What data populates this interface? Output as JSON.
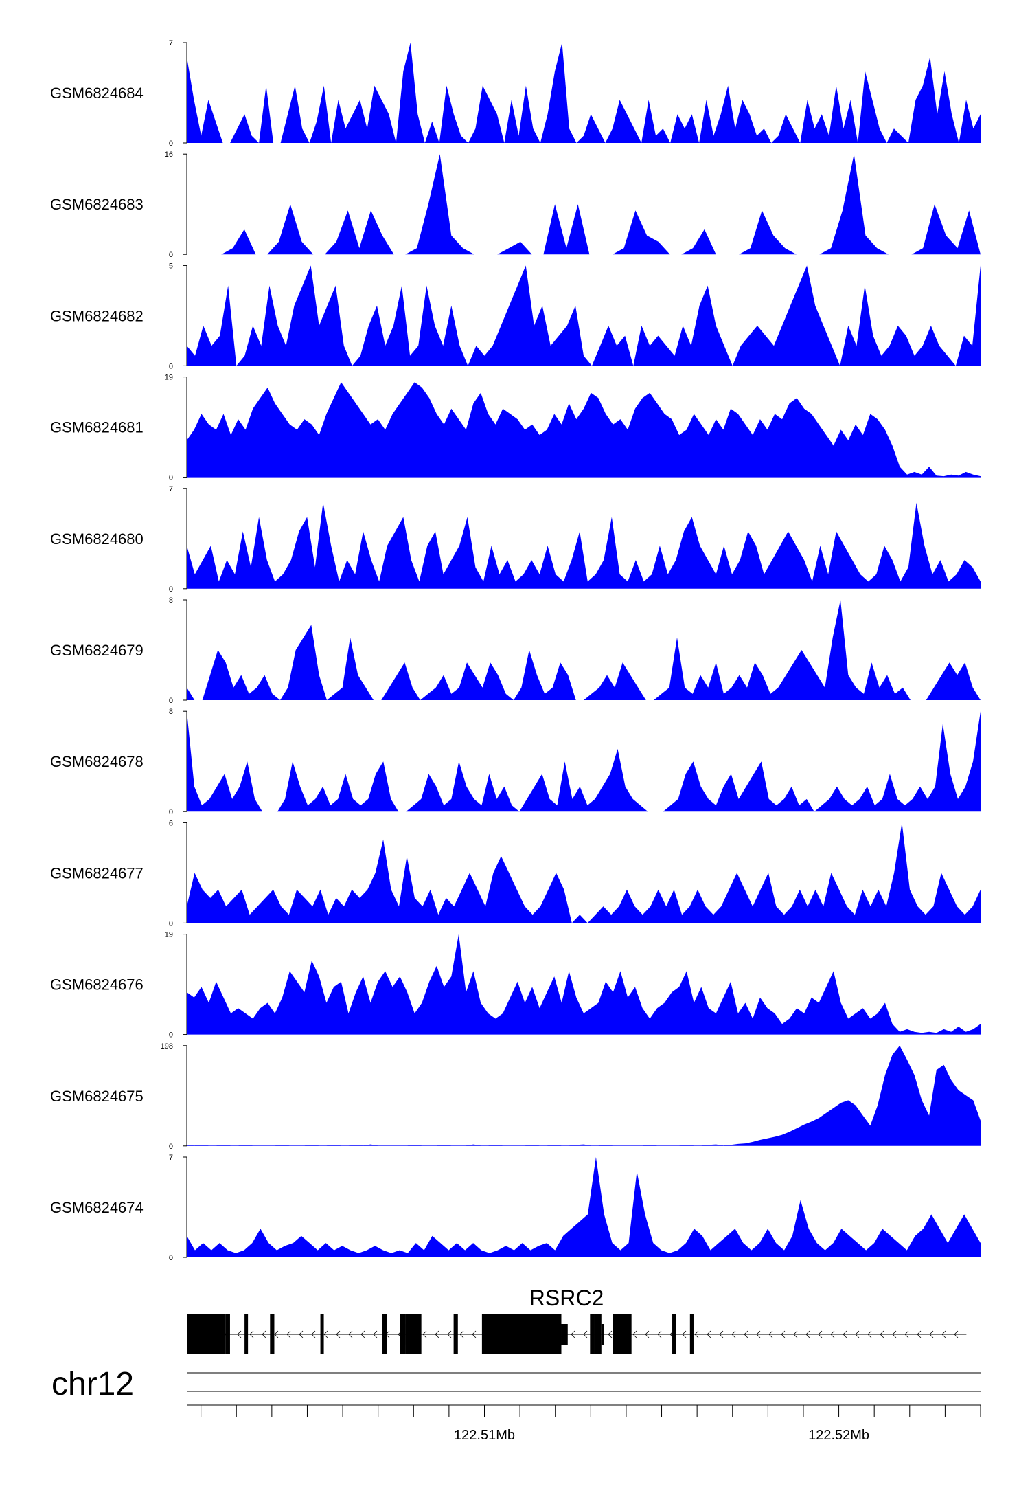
{
  "figure": {
    "chrom_label": "chr12",
    "gene_label": "RSRC2"
  },
  "colors": {
    "track_fill": "#0000ff",
    "gene": "#000000",
    "axis": "#000000"
  },
  "chart_data": {
    "type": "area",
    "genomic_range": [
      122.5016,
      122.524
    ],
    "x_unit": "Mb",
    "x_tick_labels": [
      {
        "value": 122.51,
        "label": "122.51Mb"
      },
      {
        "value": 122.52,
        "label": "122.52Mb"
      }
    ],
    "tracks": [
      {
        "name": "GSM6824684",
        "ymax": 7,
        "ymin": 0,
        "ylabel_max": "7",
        "ylabel_min": "0",
        "values": [
          6,
          3,
          0.5,
          3,
          1.5,
          0,
          0,
          1,
          2,
          0.5,
          0,
          4,
          0,
          0,
          2,
          4,
          1,
          0,
          1.5,
          4,
          0,
          3,
          1,
          2,
          3,
          1,
          4,
          3,
          2,
          0,
          5,
          7,
          2,
          0,
          1.5,
          0,
          4,
          2,
          0.5,
          0,
          1,
          4,
          3,
          2,
          0,
          3,
          0.5,
          4,
          1,
          0,
          2,
          5,
          7,
          1,
          0,
          0.5,
          2,
          1,
          0,
          1,
          3,
          2,
          1,
          0,
          3,
          0.5,
          1,
          0,
          2,
          1,
          2,
          0,
          3,
          0.5,
          2,
          4,
          1,
          3,
          2,
          0.5,
          1,
          0,
          0.5,
          2,
          1,
          0,
          3,
          1,
          2,
          0.5,
          4,
          1,
          3,
          0,
          5,
          3,
          1,
          0,
          1,
          0.5,
          0,
          3,
          4,
          6,
          2,
          5,
          2,
          0,
          3,
          1,
          2
        ]
      },
      {
        "name": "GSM6824683",
        "ymax": 16,
        "ymin": 0,
        "ylabel_max": "16",
        "ylabel_min": "0",
        "values": [
          0,
          0,
          0,
          0,
          1,
          4,
          0,
          0,
          2,
          8,
          2,
          0,
          0,
          2,
          7,
          1,
          7,
          3,
          0,
          0,
          1,
          8,
          16,
          3,
          1,
          0,
          0,
          0,
          1,
          2,
          0,
          0,
          8,
          1,
          8,
          0,
          0,
          0,
          1,
          7,
          3,
          2,
          0,
          0,
          1,
          4,
          0,
          0,
          0,
          1,
          7,
          3,
          1,
          0,
          0,
          0,
          1,
          7,
          16,
          3,
          1,
          0,
          0,
          0,
          1,
          8,
          3,
          1,
          7,
          0
        ]
      },
      {
        "name": "GSM6824682",
        "ymax": 5,
        "ymin": 0,
        "ylabel_max": "5",
        "ylabel_min": "0",
        "values": [
          1,
          0.5,
          2,
          1,
          1.5,
          4,
          0,
          0.5,
          2,
          1,
          4,
          2,
          1,
          3,
          4,
          5,
          2,
          3,
          4,
          1,
          0,
          0.5,
          2,
          3,
          1,
          2,
          4,
          0.5,
          1,
          4,
          2,
          1,
          3,
          1,
          0,
          1,
          0.5,
          1,
          2,
          3,
          4,
          5,
          2,
          3,
          1,
          1.5,
          2,
          3,
          0.5,
          0,
          1,
          2,
          1,
          1.5,
          0,
          2,
          1,
          1.5,
          1,
          0.5,
          2,
          1,
          3,
          4,
          2,
          1,
          0,
          1,
          1.5,
          2,
          1.5,
          1,
          2,
          3,
          4,
          5,
          3,
          2,
          1,
          0,
          2,
          1,
          4,
          1.5,
          0.5,
          1,
          2,
          1.5,
          0.5,
          1,
          2,
          1,
          0.5,
          0,
          1.5,
          1,
          5
        ]
      },
      {
        "name": "GSM6824681",
        "ymax": 19,
        "ymin": 0,
        "ylabel_max": "19",
        "ylabel_min": "0",
        "values": [
          7,
          9,
          12,
          10,
          9,
          12,
          8,
          11,
          9,
          13,
          15,
          17,
          14,
          12,
          10,
          9,
          11,
          10,
          8,
          12,
          15,
          18,
          16,
          14,
          12,
          10,
          11,
          9,
          12,
          14,
          16,
          18,
          17,
          15,
          12,
          10,
          13,
          11,
          9,
          14,
          16,
          12,
          10,
          13,
          12,
          11,
          9,
          10,
          8,
          9,
          12,
          10,
          14,
          11,
          13,
          16,
          15,
          12,
          10,
          11,
          9,
          13,
          15,
          16,
          14,
          12,
          11,
          8,
          9,
          12,
          10,
          8,
          11,
          9,
          13,
          12,
          10,
          8,
          11,
          9,
          12,
          11,
          14,
          15,
          13,
          12,
          10,
          8,
          6,
          9,
          7,
          10,
          8,
          12,
          11,
          9,
          6,
          2,
          0.5,
          1,
          0.5,
          2,
          0.3,
          0.2,
          0.5,
          0.3,
          1,
          0.5,
          0.2
        ]
      },
      {
        "name": "GSM6824680",
        "ymax": 7,
        "ymin": 0,
        "ylabel_max": "7",
        "ylabel_min": "0",
        "values": [
          3,
          1,
          2,
          3,
          0.5,
          2,
          1,
          4,
          1.5,
          5,
          2,
          0.5,
          1,
          2,
          4,
          5,
          1.5,
          6,
          3,
          0.5,
          2,
          1,
          4,
          2,
          0.5,
          3,
          4,
          5,
          2,
          0.5,
          3,
          4,
          1,
          2,
          3,
          5,
          1.5,
          0.5,
          3,
          1,
          2,
          0.5,
          1,
          2,
          1,
          3,
          1,
          0.5,
          2,
          4,
          0.5,
          1,
          2,
          5,
          1,
          0.5,
          2,
          0.5,
          1,
          3,
          1,
          2,
          4,
          5,
          3,
          2,
          1,
          3,
          1,
          2,
          4,
          3,
          1,
          2,
          3,
          4,
          3,
          2,
          0.5,
          3,
          1,
          4,
          3,
          2,
          1,
          0.5,
          1,
          3,
          2,
          0.5,
          1.5,
          6,
          3,
          1,
          2,
          0.5,
          1,
          2,
          1.5,
          0.5
        ]
      },
      {
        "name": "GSM6824679",
        "ymax": 8,
        "ymin": 0,
        "ylabel_max": "8",
        "ylabel_min": "0",
        "values": [
          1,
          0,
          0,
          2,
          4,
          3,
          1,
          2,
          0.5,
          1,
          2,
          0.5,
          0,
          1,
          4,
          5,
          6,
          2,
          0,
          0.5,
          1,
          5,
          2,
          1,
          0,
          0,
          1,
          2,
          3,
          1,
          0,
          0.5,
          1,
          2,
          0.5,
          1,
          3,
          2,
          1,
          3,
          2,
          0.5,
          0,
          1,
          4,
          2,
          0.5,
          1,
          3,
          2,
          0,
          0,
          0.5,
          1,
          2,
          1,
          3,
          2,
          1,
          0,
          0,
          0.5,
          1,
          5,
          1,
          0.5,
          2,
          1,
          3,
          0.5,
          1,
          2,
          1,
          3,
          2,
          0.5,
          1,
          2,
          3,
          4,
          3,
          2,
          1,
          5,
          8,
          2,
          1,
          0.5,
          3,
          1,
          2,
          0.5,
          1,
          0,
          0,
          0,
          1,
          2,
          3,
          2,
          3,
          1,
          0
        ]
      },
      {
        "name": "GSM6824678",
        "ymax": 8,
        "ymin": 0,
        "ylabel_max": "8",
        "ylabel_min": "0",
        "values": [
          8,
          2,
          0.5,
          1,
          2,
          3,
          1,
          2,
          4,
          1,
          0,
          0,
          0,
          1,
          4,
          2,
          0.5,
          1,
          2,
          0.5,
          1,
          3,
          1,
          0.5,
          1,
          3,
          4,
          1,
          0,
          0,
          0.5,
          1,
          3,
          2,
          0.5,
          1,
          4,
          2,
          1,
          0.5,
          3,
          1,
          2,
          0.5,
          0,
          1,
          2,
          3,
          1,
          0.5,
          4,
          1,
          2,
          0.5,
          1,
          2,
          3,
          5,
          2,
          1,
          0.5,
          0,
          0,
          0,
          0.5,
          1,
          3,
          4,
          2,
          1,
          0.5,
          2,
          3,
          1,
          2,
          3,
          4,
          1,
          0.5,
          1,
          2,
          0.5,
          1,
          0,
          0.5,
          1,
          2,
          1,
          0.5,
          1,
          2,
          0.5,
          1,
          3,
          1,
          0.5,
          1,
          2,
          1,
          2,
          7,
          3,
          1,
          2,
          4,
          8
        ]
      },
      {
        "name": "GSM6824677",
        "ymax": 6,
        "ymin": 0,
        "ylabel_max": "6",
        "ylabel_min": "0",
        "values": [
          1,
          3,
          2,
          1.5,
          2,
          1,
          1.5,
          2,
          0.5,
          1,
          1.5,
          2,
          1,
          0.5,
          2,
          1.5,
          1,
          2,
          0.5,
          1.5,
          1,
          2,
          1.5,
          2,
          3,
          5,
          2,
          1,
          4,
          1.5,
          1,
          2,
          0.5,
          1.5,
          1,
          2,
          3,
          2,
          1,
          3,
          4,
          3,
          2,
          1,
          0.5,
          1,
          2,
          3,
          2,
          0,
          0.5,
          0,
          0.5,
          1,
          0.5,
          1,
          2,
          1,
          0.5,
          1,
          2,
          1,
          2,
          0.5,
          1,
          2,
          1,
          0.5,
          1,
          2,
          3,
          2,
          1,
          2,
          3,
          1,
          0.5,
          1,
          2,
          1,
          2,
          1,
          3,
          2,
          1,
          0.5,
          2,
          1,
          2,
          1,
          3,
          6,
          2,
          1,
          0.5,
          1,
          3,
          2,
          1,
          0.5,
          1,
          2
        ]
      },
      {
        "name": "GSM6824676",
        "ymax": 19,
        "ymin": 0,
        "ylabel_max": "19",
        "ylabel_min": "0",
        "values": [
          8,
          7,
          9,
          6,
          10,
          7,
          4,
          5,
          4,
          3,
          5,
          6,
          4,
          7,
          12,
          10,
          8,
          14,
          11,
          6,
          9,
          10,
          4,
          8,
          11,
          6,
          10,
          12,
          9,
          11,
          8,
          4,
          6,
          10,
          13,
          9,
          11,
          19,
          8,
          12,
          6,
          4,
          3,
          4,
          7,
          10,
          6,
          9,
          5,
          8,
          11,
          6,
          12,
          7,
          4,
          5,
          6,
          10,
          8,
          12,
          7,
          9,
          5,
          3,
          5,
          6,
          8,
          9,
          12,
          6,
          9,
          5,
          4,
          7,
          10,
          4,
          6,
          3,
          7,
          5,
          4,
          2,
          3,
          5,
          4,
          7,
          6,
          9,
          12,
          6,
          3,
          4,
          5,
          3,
          4,
          6,
          2,
          0.5,
          1,
          0.5,
          0.3,
          0.5,
          0.3,
          1,
          0.5,
          1.5,
          0.5,
          1,
          2
        ]
      },
      {
        "name": "GSM6824675",
        "ymax": 198,
        "ymin": 0,
        "ylabel_max": "198",
        "ylabel_min": "0",
        "values": [
          2,
          1,
          2,
          1,
          1,
          2,
          1,
          1,
          2,
          1,
          1,
          1,
          1,
          2,
          1,
          1,
          1,
          2,
          1,
          1,
          2,
          1,
          1,
          2,
          1,
          3,
          1,
          1,
          1,
          1,
          1,
          2,
          1,
          1,
          1,
          2,
          1,
          1,
          1,
          3,
          1,
          1,
          2,
          1,
          1,
          1,
          1,
          2,
          1,
          1,
          2,
          1,
          1,
          2,
          3,
          1,
          1,
          2,
          1,
          1,
          1,
          1,
          1,
          2,
          1,
          1,
          1,
          1,
          2,
          1,
          1,
          2,
          3,
          1,
          2,
          4,
          5,
          8,
          12,
          15,
          18,
          22,
          28,
          35,
          42,
          48,
          55,
          65,
          75,
          85,
          90,
          80,
          60,
          40,
          80,
          140,
          180,
          198,
          170,
          140,
          90,
          60,
          150,
          160,
          130,
          110,
          100,
          90,
          50
        ]
      },
      {
        "name": "GSM6824674",
        "ymax": 7,
        "ymin": 0,
        "ylabel_max": "7",
        "ylabel_min": "0",
        "values": [
          1.5,
          0.5,
          1,
          0.5,
          1,
          0.5,
          0.3,
          0.5,
          1,
          2,
          1,
          0.5,
          0.8,
          1,
          1.5,
          1,
          0.5,
          1,
          0.5,
          0.8,
          0.5,
          0.3,
          0.5,
          0.8,
          0.5,
          0.3,
          0.5,
          0.3,
          1,
          0.5,
          1.5,
          1,
          0.5,
          1,
          0.5,
          1,
          0.5,
          0.3,
          0.5,
          0.8,
          0.5,
          1,
          0.5,
          0.8,
          1,
          0.5,
          1.5,
          2,
          2.5,
          3,
          7,
          3,
          1,
          0.5,
          1,
          6,
          3,
          1,
          0.5,
          0.3,
          0.5,
          1,
          2,
          1.5,
          0.5,
          1,
          1.5,
          2,
          1,
          0.5,
          1,
          2,
          1,
          0.5,
          1.5,
          4,
          2,
          1,
          0.5,
          1,
          2,
          1.5,
          1,
          0.5,
          1,
          2,
          1.5,
          1,
          0.5,
          1.5,
          2,
          3,
          2,
          1,
          2,
          3,
          2,
          1
        ]
      }
    ],
    "genes": [
      {
        "name": "RSRC2",
        "strand": "-",
        "start": 122.5016,
        "end": 122.5236,
        "exons": [
          {
            "start": 122.5016,
            "end": 122.5027
          },
          {
            "start": 122.5027,
            "end": 122.50282
          },
          {
            "start": 122.50323,
            "end": 122.5033
          },
          {
            "start": 122.50395,
            "end": 122.50407
          },
          {
            "start": 122.50537,
            "end": 122.50544
          },
          {
            "start": 122.50712,
            "end": 122.50725
          },
          {
            "start": 122.50762,
            "end": 122.50777
          },
          {
            "start": 122.50777,
            "end": 122.50822
          },
          {
            "start": 122.50913,
            "end": 122.50925
          },
          {
            "start": 122.50993,
            "end": 122.5101
          },
          {
            "start": 122.5101,
            "end": 122.51217
          },
          {
            "start": 122.51298,
            "end": 122.5131
          },
          {
            "start": 122.5131,
            "end": 122.5133
          },
          {
            "start": 122.51362,
            "end": 122.51415
          },
          {
            "start": 122.5153,
            "end": 122.5154
          },
          {
            "start": 122.5158,
            "end": 122.5159
          }
        ],
        "thin_exons": [
          {
            "start": 122.50777,
            "end": 122.50787
          },
          {
            "start": 122.51217,
            "end": 122.51235
          },
          {
            "start": 122.5133,
            "end": 122.51338
          }
        ]
      }
    ]
  }
}
